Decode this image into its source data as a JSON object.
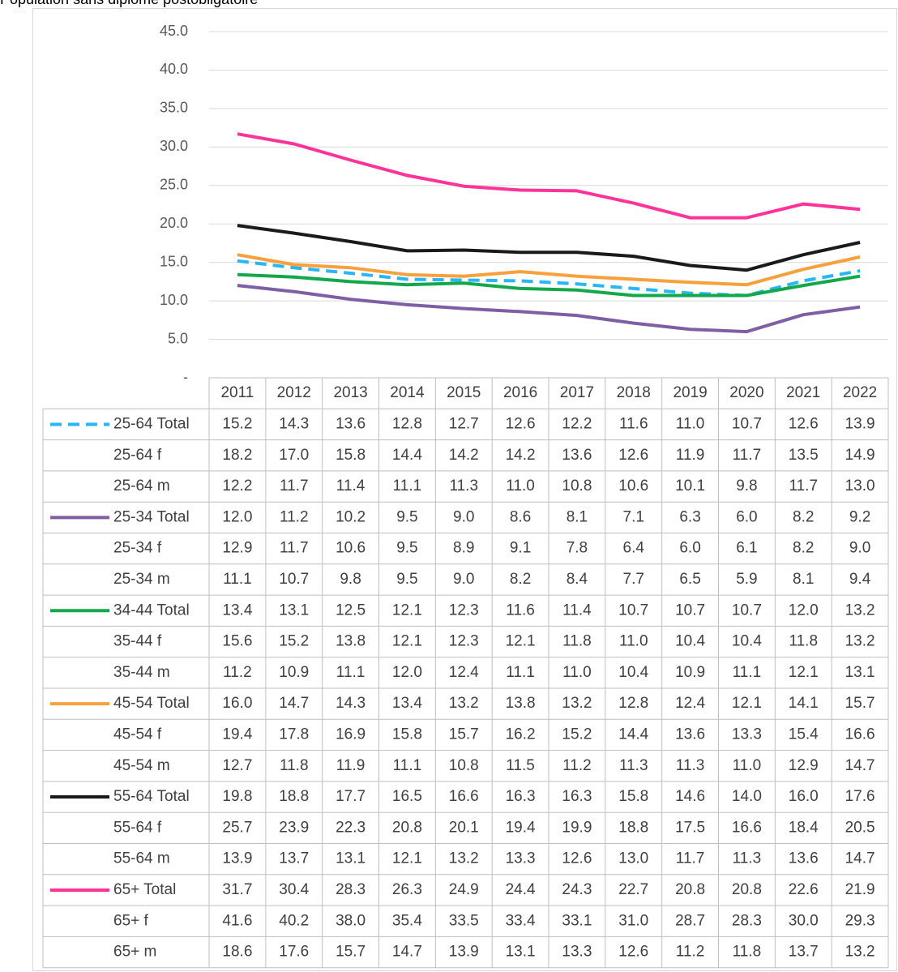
{
  "chart_data": {
    "type": "line",
    "title": "Population sans diplôme postobligatoire",
    "categories": [
      "2011",
      "2012",
      "2013",
      "2014",
      "2015",
      "2016",
      "2017",
      "2018",
      "2019",
      "2020",
      "2021",
      "2022"
    ],
    "ylim": [
      0,
      45
    ],
    "yticks": [
      {
        "value": 0,
        "label": "-"
      },
      {
        "value": 5,
        "label": "5.0"
      },
      {
        "value": 10,
        "label": "10.0"
      },
      {
        "value": 15,
        "label": "15.0"
      },
      {
        "value": 20,
        "label": "20.0"
      },
      {
        "value": 25,
        "label": "25.0"
      },
      {
        "value": 30,
        "label": "30.0"
      },
      {
        "value": 35,
        "label": "35.0"
      },
      {
        "value": 40,
        "label": "40.0"
      },
      {
        "value": 45,
        "label": "45.0"
      }
    ],
    "grid": true,
    "series": [
      {
        "name": "25-64 Total",
        "color": "#29b6f6",
        "dash": true,
        "values": [
          15.2,
          14.3,
          13.6,
          12.8,
          12.7,
          12.6,
          12.2,
          11.6,
          11.0,
          10.7,
          12.6,
          13.9
        ],
        "value_labels": [
          "15.2",
          "14.3",
          "13.6",
          "12.8",
          "12.7",
          "12.6",
          "12.2",
          "11.6",
          "11.0",
          "10.7",
          "12.6",
          "13.9"
        ]
      },
      {
        "name": "25-64 f",
        "values": [
          18.2,
          17.0,
          15.8,
          14.4,
          14.2,
          14.2,
          13.6,
          12.6,
          11.9,
          11.7,
          13.5,
          14.9
        ],
        "value_labels": [
          "18.2",
          "17.0",
          "15.8",
          "14.4",
          "14.2",
          "14.2",
          "13.6",
          "12.6",
          "11.9",
          "11.7",
          "13.5",
          "14.9"
        ]
      },
      {
        "name": "25-64 m",
        "values": [
          12.2,
          11.7,
          11.4,
          11.1,
          11.3,
          11.0,
          10.8,
          10.6,
          10.1,
          9.8,
          11.7,
          13.0
        ],
        "value_labels": [
          "12.2",
          "11.7",
          "11.4",
          "11.1",
          "11.3",
          "11.0",
          "10.8",
          "10.6",
          "10.1",
          "9.8",
          "11.7",
          "13.0"
        ]
      },
      {
        "name": "25-34 Total",
        "color": "#7e5fa5",
        "values": [
          12.0,
          11.2,
          10.2,
          9.5,
          9.0,
          8.6,
          8.1,
          7.1,
          6.3,
          6.0,
          8.2,
          9.2
        ],
        "value_labels": [
          "12.0",
          "11.2",
          "10.2",
          "9.5",
          "9.0",
          "8.6",
          "8.1",
          "7.1",
          "6.3",
          "6.0",
          "8.2",
          "9.2"
        ]
      },
      {
        "name": "25-34 f",
        "values": [
          12.9,
          11.7,
          10.6,
          9.5,
          8.9,
          9.1,
          7.8,
          6.4,
          6.0,
          6.1,
          8.2,
          9.0
        ],
        "value_labels": [
          "12.9",
          "11.7",
          "10.6",
          "9.5",
          "8.9",
          "9.1",
          "7.8",
          "6.4",
          "6.0",
          "6.1",
          "8.2",
          "9.0"
        ]
      },
      {
        "name": "25-34 m",
        "values": [
          11.1,
          10.7,
          9.8,
          9.5,
          9.0,
          8.2,
          8.4,
          7.7,
          6.5,
          5.9,
          8.1,
          9.4
        ],
        "value_labels": [
          "11.1",
          "10.7",
          "9.8",
          "9.5",
          "9.0",
          "8.2",
          "8.4",
          "7.7",
          "6.5",
          "5.9",
          "8.1",
          "9.4"
        ]
      },
      {
        "name": "34-44 Total",
        "color": "#12a84b",
        "values": [
          13.4,
          13.1,
          12.5,
          12.1,
          12.3,
          11.6,
          11.4,
          10.7,
          10.7,
          10.7,
          12.0,
          13.2
        ],
        "value_labels": [
          "13.4",
          "13.1",
          "12.5",
          "12.1",
          "12.3",
          "11.6",
          "11.4",
          "10.7",
          "10.7",
          "10.7",
          "12.0",
          "13.2"
        ]
      },
      {
        "name": "35-44 f",
        "values": [
          15.6,
          15.2,
          13.8,
          12.1,
          12.3,
          12.1,
          11.8,
          11.0,
          10.4,
          10.4,
          11.8,
          13.2
        ],
        "value_labels": [
          "15.6",
          "15.2",
          "13.8",
          "12.1",
          "12.3",
          "12.1",
          "11.8",
          "11.0",
          "10.4",
          "10.4",
          "11.8",
          "13.2"
        ]
      },
      {
        "name": "35-44 m",
        "values": [
          11.2,
          10.9,
          11.1,
          12.0,
          12.4,
          11.1,
          11.0,
          10.4,
          10.9,
          11.1,
          12.1,
          13.1
        ],
        "value_labels": [
          "11.2",
          "10.9",
          "11.1",
          "12.0",
          "12.4",
          "11.1",
          "11.0",
          "10.4",
          "10.9",
          "11.1",
          "12.1",
          "13.1"
        ]
      },
      {
        "name": "45-54 Total",
        "color": "#f7a03c",
        "values": [
          16.0,
          14.7,
          14.3,
          13.4,
          13.2,
          13.8,
          13.2,
          12.8,
          12.4,
          12.1,
          14.1,
          15.7
        ],
        "value_labels": [
          "16.0",
          "14.7",
          "14.3",
          "13.4",
          "13.2",
          "13.8",
          "13.2",
          "12.8",
          "12.4",
          "12.1",
          "14.1",
          "15.7"
        ]
      },
      {
        "name": "45-54 f",
        "values": [
          19.4,
          17.8,
          16.9,
          15.8,
          15.7,
          16.2,
          15.2,
          14.4,
          13.6,
          13.3,
          15.4,
          16.6
        ],
        "value_labels": [
          "19.4",
          "17.8",
          "16.9",
          "15.8",
          "15.7",
          "16.2",
          "15.2",
          "14.4",
          "13.6",
          "13.3",
          "15.4",
          "16.6"
        ]
      },
      {
        "name": "45-54 m",
        "values": [
          12.7,
          11.8,
          11.9,
          11.1,
          10.8,
          11.5,
          11.2,
          11.3,
          11.3,
          11.0,
          12.9,
          14.7
        ],
        "value_labels": [
          "12.7",
          "11.8",
          "11.9",
          "11.1",
          "10.8",
          "11.5",
          "11.2",
          "11.3",
          "11.3",
          "11.0",
          "12.9",
          "14.7"
        ]
      },
      {
        "name": "55-64 Total",
        "color": "#1a1a1a",
        "values": [
          19.8,
          18.8,
          17.7,
          16.5,
          16.6,
          16.3,
          16.3,
          15.8,
          14.6,
          14.0,
          16.0,
          17.6
        ],
        "value_labels": [
          "19.8",
          "18.8",
          "17.7",
          "16.5",
          "16.6",
          "16.3",
          "16.3",
          "15.8",
          "14.6",
          "14.0",
          "16.0",
          "17.6"
        ]
      },
      {
        "name": "55-64 f",
        "values": [
          25.7,
          23.9,
          22.3,
          20.8,
          20.1,
          19.4,
          19.9,
          18.8,
          17.5,
          16.6,
          18.4,
          20.5
        ],
        "value_labels": [
          "25.7",
          "23.9",
          "22.3",
          "20.8",
          "20.1",
          "19.4",
          "19.9",
          "18.8",
          "17.5",
          "16.6",
          "18.4",
          "20.5"
        ]
      },
      {
        "name": "55-64 m",
        "values": [
          13.9,
          13.7,
          13.1,
          12.1,
          13.2,
          13.3,
          12.6,
          13.0,
          11.7,
          11.3,
          13.6,
          14.7
        ],
        "value_labels": [
          "13.9",
          "13.7",
          "13.1",
          "12.1",
          "13.2",
          "13.3",
          "12.6",
          "13.0",
          "11.7",
          "11.3",
          "13.6",
          "14.7"
        ]
      },
      {
        "name": "65+ Total",
        "color": "#ff3399",
        "values": [
          31.7,
          30.4,
          28.3,
          26.3,
          24.9,
          24.4,
          24.3,
          22.7,
          20.8,
          20.8,
          22.6,
          21.9
        ],
        "value_labels": [
          "31.7",
          "30.4",
          "28.3",
          "26.3",
          "24.9",
          "24.4",
          "24.3",
          "22.7",
          "20.8",
          "20.8",
          "22.6",
          "21.9"
        ]
      },
      {
        "name": "65+ f",
        "values": [
          41.6,
          40.2,
          38.0,
          35.4,
          33.5,
          33.4,
          33.1,
          31.0,
          28.7,
          28.3,
          30.0,
          29.3
        ],
        "value_labels": [
          "41.6",
          "40.2",
          "38.0",
          "35.4",
          "33.5",
          "33.4",
          "33.1",
          "31.0",
          "28.7",
          "28.3",
          "30.0",
          "29.3"
        ]
      },
      {
        "name": "65+ m",
        "values": [
          18.6,
          17.6,
          15.7,
          14.7,
          13.9,
          13.1,
          13.3,
          12.6,
          11.2,
          11.8,
          13.7,
          13.2
        ],
        "value_labels": [
          "18.6",
          "17.6",
          "15.7",
          "14.7",
          "13.9",
          "13.1",
          "13.3",
          "12.6",
          "11.2",
          "11.8",
          "13.7",
          "13.2"
        ]
      }
    ]
  }
}
